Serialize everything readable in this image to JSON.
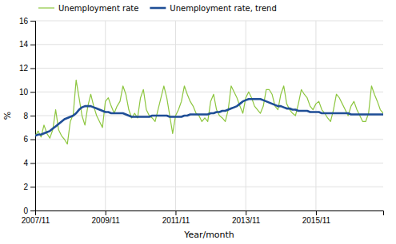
{
  "chart_data": {
    "type": "line",
    "xlabel": "Year/month",
    "ylabel": "%",
    "categories": [
      "2007/11",
      null,
      null,
      null,
      null,
      null,
      null,
      null,
      null,
      null,
      null,
      null,
      null,
      null,
      null,
      null,
      null,
      null,
      null,
      null,
      null,
      null,
      null,
      null,
      "2009/11",
      null,
      null,
      null,
      null,
      null,
      null,
      null,
      null,
      null,
      null,
      null,
      null,
      null,
      null,
      null,
      null,
      null,
      null,
      null,
      null,
      null,
      null,
      null,
      "2011/11",
      null,
      null,
      null,
      null,
      null,
      null,
      null,
      null,
      null,
      null,
      null,
      null,
      null,
      null,
      null,
      null,
      null,
      null,
      null,
      null,
      null,
      null,
      null,
      "2013/11",
      null,
      null,
      null,
      null,
      null,
      null,
      null,
      null,
      null,
      null,
      null,
      null,
      null,
      null,
      null,
      null,
      null,
      null,
      null,
      null,
      null,
      null,
      null,
      "2015/11",
      null,
      null,
      null,
      null,
      null,
      null,
      null,
      null,
      null,
      null,
      null,
      null,
      null,
      null,
      null,
      null,
      null,
      null,
      null,
      null,
      null,
      null,
      null
    ],
    "series": [
      {
        "name": "Unemployment rate",
        "color": "#8dc63f",
        "values": [
          6.3,
          6.7,
          6.2,
          7.2,
          6.5,
          6.1,
          6.8,
          8.5,
          6.8,
          6.3,
          6.0,
          5.6,
          7.5,
          8.1,
          11.0,
          9.5,
          8.0,
          7.2,
          8.8,
          9.8,
          8.8,
          8.0,
          7.5,
          7.0,
          9.2,
          9.5,
          8.8,
          8.2,
          8.8,
          9.2,
          10.5,
          9.8,
          8.5,
          7.8,
          8.2,
          7.8,
          9.5,
          10.2,
          8.5,
          8.0,
          7.8,
          7.5,
          8.5,
          9.5,
          10.5,
          9.5,
          8.0,
          6.5,
          8.0,
          8.5,
          9.2,
          10.5,
          9.8,
          9.2,
          8.8,
          8.2,
          8.0,
          7.5,
          7.8,
          7.5,
          9.2,
          9.8,
          8.5,
          8.0,
          7.8,
          7.5,
          8.5,
          10.5,
          10.0,
          9.5,
          8.8,
          8.2,
          9.5,
          10.0,
          9.5,
          8.8,
          8.5,
          8.2,
          8.8,
          10.2,
          10.2,
          9.8,
          8.8,
          8.5,
          9.8,
          10.5,
          9.0,
          8.5,
          8.2,
          8.0,
          9.0,
          10.2,
          9.8,
          9.5,
          8.8,
          8.5,
          9.0,
          9.2,
          8.5,
          8.2,
          7.8,
          7.5,
          8.5,
          9.8,
          9.5,
          9.0,
          8.5,
          8.0,
          8.8,
          9.2,
          8.5,
          8.0,
          7.5,
          7.5,
          8.2,
          10.5,
          9.8,
          9.2,
          8.5,
          8.2
        ]
      },
      {
        "name": "Unemployment rate, trend",
        "color": "#1f4e96",
        "values": [
          6.3,
          6.4,
          6.4,
          6.5,
          6.6,
          6.7,
          6.9,
          7.1,
          7.3,
          7.5,
          7.7,
          7.8,
          7.9,
          8.0,
          8.2,
          8.5,
          8.7,
          8.8,
          8.8,
          8.8,
          8.7,
          8.6,
          8.5,
          8.4,
          8.3,
          8.3,
          8.2,
          8.2,
          8.2,
          8.2,
          8.2,
          8.1,
          8.0,
          7.9,
          7.9,
          7.9,
          7.9,
          7.9,
          7.9,
          7.9,
          8.0,
          8.0,
          8.0,
          8.0,
          8.0,
          8.0,
          7.9,
          7.9,
          7.9,
          7.9,
          7.9,
          8.0,
          8.0,
          8.1,
          8.1,
          8.1,
          8.1,
          8.1,
          8.1,
          8.1,
          8.2,
          8.2,
          8.3,
          8.3,
          8.4,
          8.4,
          8.5,
          8.6,
          8.7,
          8.8,
          9.0,
          9.2,
          9.3,
          9.4,
          9.4,
          9.4,
          9.4,
          9.4,
          9.3,
          9.2,
          9.1,
          9.0,
          8.9,
          8.8,
          8.8,
          8.7,
          8.6,
          8.6,
          8.5,
          8.5,
          8.4,
          8.4,
          8.4,
          8.4,
          8.3,
          8.3,
          8.3,
          8.3,
          8.2,
          8.2,
          8.2,
          8.2,
          8.2,
          8.2,
          8.2,
          8.2,
          8.2,
          8.2,
          8.1,
          8.1,
          8.1,
          8.1,
          8.1,
          8.1,
          8.1,
          8.1,
          8.1,
          8.1,
          8.1,
          8.1
        ]
      }
    ],
    "ylim": [
      0,
      16
    ],
    "yticks": [
      0,
      2,
      4,
      6,
      8,
      10,
      12,
      14,
      16
    ],
    "grid": true,
    "legend": "upper left"
  }
}
